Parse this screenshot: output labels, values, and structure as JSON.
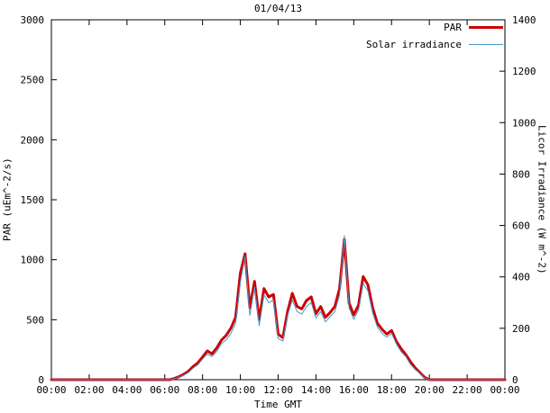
{
  "chart_data": {
    "type": "line",
    "title": "01/04/13",
    "axes": {
      "xlabel": "Time GMT",
      "ylabel_left": "PAR (uEm^-2/s)",
      "ylabel_right": "Licor Irradiance (W m^-2)",
      "y_left_max": 3000,
      "y_right_max": 1400,
      "y_left_ticks": [
        0,
        500,
        1000,
        1500,
        2000,
        2500,
        3000
      ],
      "y_right_ticks": [
        0,
        200,
        400,
        600,
        800,
        1000,
        1200,
        1400
      ],
      "x_tick_labels": [
        "00:00",
        "02:00",
        "04:00",
        "06:00",
        "08:00",
        "10:00",
        "12:00",
        "14:00",
        "16:00",
        "18:00",
        "20:00",
        "22:00",
        "00:00"
      ],
      "grid": false
    },
    "x_start": "00:00",
    "x_end": "00:00",
    "x_step_minutes": 15,
    "legend_position": "top-right-inside",
    "series": [
      {
        "name": "PAR",
        "axis": "left",
        "color": "#cc0000",
        "stroke_width": 3,
        "values": [
          0,
          0,
          0,
          0,
          0,
          0,
          0,
          0,
          0,
          0,
          0,
          0,
          0,
          0,
          0,
          0,
          0,
          0,
          0,
          0,
          0,
          0,
          0,
          0,
          0,
          0,
          10,
          25,
          45,
          70,
          110,
          140,
          190,
          240,
          215,
          265,
          330,
          370,
          430,
          520,
          890,
          1050,
          600,
          820,
          500,
          760,
          690,
          710,
          380,
          350,
          570,
          720,
          610,
          590,
          660,
          690,
          550,
          610,
          520,
          560,
          610,
          760,
          1170,
          640,
          540,
          620,
          860,
          790,
          600,
          470,
          420,
          380,
          410,
          320,
          260,
          210,
          150,
          100,
          60,
          20,
          0,
          0,
          0,
          0,
          0,
          0,
          0,
          0,
          0,
          0,
          0,
          0,
          0,
          0,
          0,
          0,
          0
        ]
      },
      {
        "name": "Solar irradiance",
        "axis": "right",
        "color": "#4499cc",
        "stroke_width": 1,
        "values": [
          0,
          0,
          0,
          0,
          0,
          0,
          0,
          0,
          0,
          0,
          0,
          0,
          0,
          0,
          0,
          0,
          0,
          0,
          0,
          0,
          0,
          0,
          0,
          0,
          0,
          0,
          4,
          10,
          18,
          28,
          45,
          58,
          80,
          100,
          90,
          110,
          140,
          155,
          180,
          220,
          380,
          480,
          250,
          360,
          210,
          330,
          300,
          310,
          160,
          150,
          250,
          310,
          265,
          255,
          285,
          300,
          240,
          265,
          225,
          245,
          265,
          330,
          560,
          280,
          235,
          270,
          375,
          345,
          260,
          205,
          180,
          165,
          180,
          140,
          110,
          90,
          60,
          40,
          25,
          8,
          0,
          0,
          0,
          0,
          0,
          0,
          0,
          0,
          0,
          0,
          0,
          0,
          0,
          0,
          0,
          0,
          0
        ]
      }
    ]
  }
}
